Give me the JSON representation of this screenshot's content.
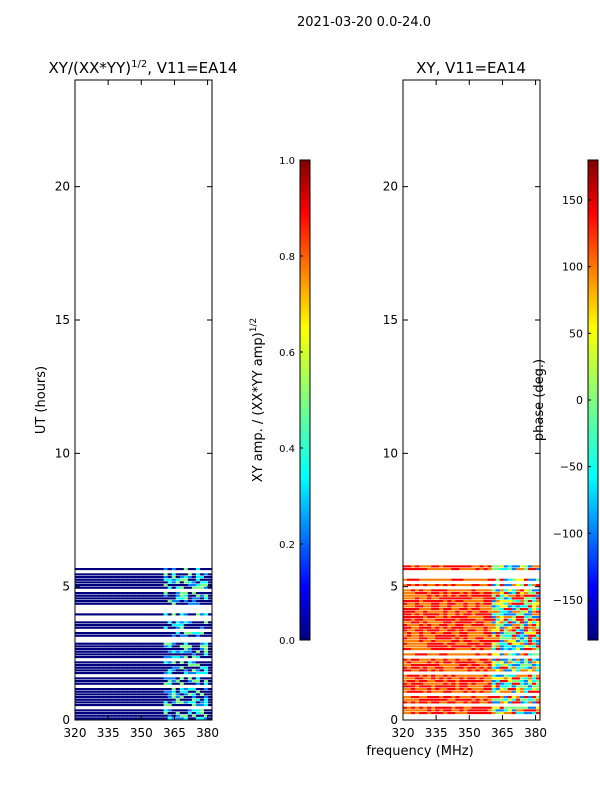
{
  "suptitle": "2021-03-20 0.0-24.0",
  "shared_xlabel": "frequency (MHz)",
  "chart_data": [
    {
      "type": "heatmap",
      "title_main": "XY/(XX*YY)",
      "title_exp": "1/2",
      "title_rest": ", V11=EA14",
      "ylabel": "UT (hours)",
      "xlim": [
        320,
        382
      ],
      "ylim": [
        0,
        24
      ],
      "xticks": [
        320,
        335,
        350,
        365,
        380
      ],
      "yticks": [
        0,
        5,
        10,
        15,
        20
      ],
      "data_until_hour": 5.8,
      "colorbar": {
        "label_main": "XY amp. / (XX*YY amp)",
        "label_exp": "1/2",
        "range": [
          0.0,
          1.0
        ],
        "ticks": [
          "0.0",
          "0.2",
          "0.4",
          "0.6",
          "0.8",
          "1.0"
        ],
        "colormap": "jet"
      }
    },
    {
      "type": "heatmap",
      "title": "XY, V11=EA14",
      "ylabel": "",
      "xlim": [
        320,
        382
      ],
      "ylim": [
        0,
        24
      ],
      "xticks": [
        320,
        335,
        350,
        365,
        380
      ],
      "yticks": [
        0,
        5,
        10,
        15,
        20
      ],
      "data_until_hour": 5.8,
      "colorbar": {
        "label": "phase (deg.)",
        "range": [
          -180,
          180
        ],
        "ticks": [
          "−150",
          "−100",
          "−50",
          "0",
          "50",
          "100",
          "150"
        ],
        "colormap": "jet"
      }
    }
  ],
  "colors": {
    "jet": [
      "#00007f",
      "#0000ff",
      "#007fff",
      "#00ffff",
      "#7fff7f",
      "#ffff00",
      "#ff7f00",
      "#ff0000",
      "#7f0000"
    ],
    "axis": "#000000"
  }
}
